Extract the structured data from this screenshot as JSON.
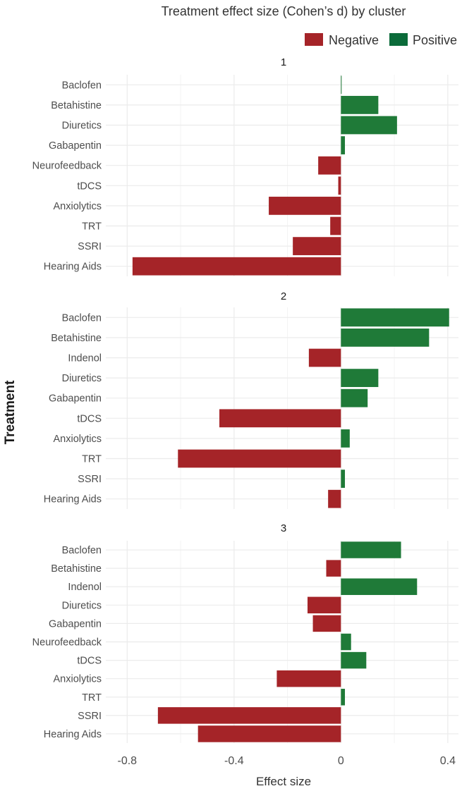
{
  "colors": {
    "negative": "#a52428",
    "positive": "#1f7a38",
    "legend_positive": "#0b6b3a",
    "grid": "#ebebeb"
  },
  "chart_data": {
    "type": "bar",
    "orientation": "horizontal",
    "title": "Treatment effect size (Cohen’s d) by cluster",
    "xlabel": "Effect size",
    "ylabel": "Treatment",
    "xlim": [
      -0.88,
      0.44
    ],
    "xticks": [
      -0.8,
      -0.4,
      0,
      0.4
    ],
    "xtick_labels": [
      "-0.8",
      "-0.4",
      "0",
      "0.4"
    ],
    "grid": true,
    "legend": {
      "position": "top-right",
      "entries": [
        {
          "label": "Negative",
          "color_key": "negative"
        },
        {
          "label": "Positive",
          "color_key": "positive"
        }
      ]
    },
    "panels": [
      {
        "title": "1",
        "categories": [
          "Baclofen",
          "Betahistine",
          "Diuretics",
          "Gabapentin",
          "Neurofeedback",
          "tDCS",
          "Anxiolytics",
          "TRT",
          "SSRI",
          "Hearing Aids"
        ],
        "values": [
          0.002,
          0.14,
          0.21,
          0.015,
          -0.085,
          -0.01,
          -0.27,
          -0.04,
          -0.18,
          -0.78
        ]
      },
      {
        "title": "2",
        "categories": [
          "Baclofen",
          "Betahistine",
          "Indenol",
          "Diuretics",
          "Gabapentin",
          "tDCS",
          "Anxiolytics",
          "TRT",
          "SSRI",
          "Hearing Aids"
        ],
        "values": [
          0.405,
          0.33,
          -0.12,
          0.14,
          0.1,
          -0.455,
          0.033,
          -0.61,
          0.015,
          -0.048
        ]
      },
      {
        "title": "3",
        "categories": [
          "Baclofen",
          "Betahistine",
          "Indenol",
          "Diuretics",
          "Gabapentin",
          "Neurofeedback",
          "tDCS",
          "Anxiolytics",
          "TRT",
          "SSRI",
          "Hearing Aids"
        ],
        "values": [
          0.225,
          -0.055,
          0.285,
          -0.125,
          -0.105,
          0.038,
          0.095,
          -0.24,
          0.015,
          -0.685,
          -0.535
        ]
      }
    ]
  }
}
